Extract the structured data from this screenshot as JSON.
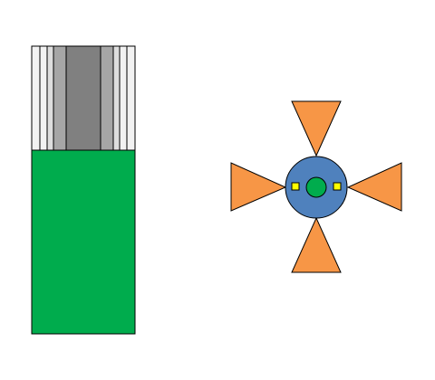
{
  "colors": {
    "background": "#ffffff",
    "outline": "#000000",
    "fill_green": "#00ac4d",
    "stripe_white": "#f2f2f2",
    "stripe_lightgray": "#dedede",
    "stripe_midgray": "#a6a6a6",
    "stripe_darkgray": "#808080",
    "hub_blue": "#4f81bd",
    "hub_green": "#00ac4d",
    "blade_orange": "#f79646",
    "marker_yellow": "#ffff00"
  },
  "objects": [
    {
      "name": "striped-column-with-fill",
      "icon": "cylinder-cross-section",
      "fill_fraction": 0.65
    },
    {
      "name": "four-blade-rotor",
      "icon": "rotor",
      "blade_count": 4
    }
  ]
}
